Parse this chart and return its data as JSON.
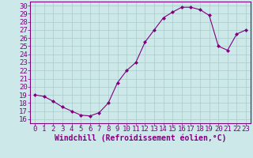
{
  "hours": [
    0,
    1,
    2,
    3,
    4,
    5,
    6,
    7,
    8,
    9,
    10,
    11,
    12,
    13,
    14,
    15,
    16,
    17,
    18,
    19,
    20,
    21,
    22,
    23
  ],
  "values": [
    19.0,
    18.8,
    18.2,
    17.5,
    17.0,
    16.5,
    16.4,
    16.8,
    18.0,
    20.5,
    22.0,
    23.0,
    25.5,
    27.0,
    28.5,
    29.2,
    29.8,
    29.8,
    29.5,
    28.8,
    25.0,
    24.5,
    26.5,
    27.0
  ],
  "line_color": "#800080",
  "marker": "D",
  "marker_size": 2.0,
  "bg_color": "#cce8e8",
  "grid_color": "#aacccc",
  "xlabel": "Windchill (Refroidissement éolien,°C)",
  "ylabel_ticks": [
    16,
    17,
    18,
    19,
    20,
    21,
    22,
    23,
    24,
    25,
    26,
    27,
    28,
    29,
    30
  ],
  "xlim": [
    -0.5,
    23.5
  ],
  "ylim": [
    15.5,
    30.5
  ],
  "tick_fontsize": 6.5,
  "xlabel_fontsize": 7.0
}
